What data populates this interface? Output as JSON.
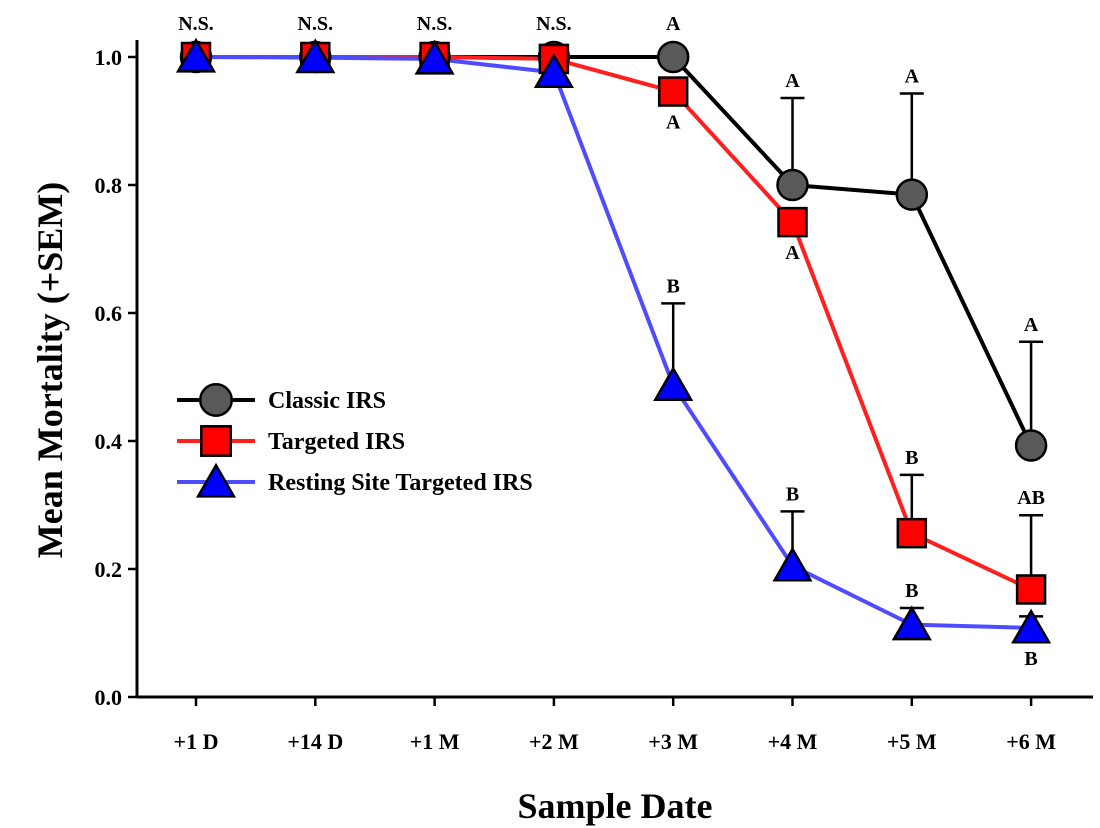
{
  "chart_data": {
    "type": "line",
    "title": "",
    "xlabel": "Sample Date",
    "ylabel": "Mean Mortality (+SEM)",
    "categories": [
      "+1 D",
      "+14 D",
      "+1 M",
      "+2 M",
      "+3 M",
      "+4 M",
      "+5 M",
      "+6 M"
    ],
    "ylim": [
      0.0,
      1.0
    ],
    "yticks": [
      "0.0",
      "0.2",
      "0.4",
      "0.6",
      "0.8",
      "1.0"
    ],
    "grid": false,
    "legend_position": "center-left",
    "series": [
      {
        "name": "Classic IRS",
        "color": "#000000",
        "marker": "circle",
        "marker_color": "#595959",
        "values": [
          1.0,
          1.0,
          1.0,
          1.0,
          1.0,
          0.8,
          0.785,
          0.393
        ],
        "sem": [
          0,
          0,
          0,
          0,
          0,
          0.136,
          0.158,
          0.162
        ]
      },
      {
        "name": "Targeted IRS",
        "color": "#ff1f1f",
        "marker": "square",
        "marker_color": "#ff0000",
        "values": [
          1.0,
          1.0,
          1.0,
          0.997,
          0.946,
          0.742,
          0.256,
          0.168
        ],
        "sem": [
          0,
          0,
          0,
          0,
          0,
          0,
          0.091,
          0.116
        ]
      },
      {
        "name": "Resting Site Targeted IRS",
        "color": "#4d4dff",
        "marker": "triangle",
        "marker_color": "#0000ff",
        "values": [
          1.0,
          0.999,
          0.997,
          0.976,
          0.487,
          0.205,
          0.113,
          0.108
        ],
        "sem": [
          0,
          0,
          0,
          0,
          0.128,
          0.085,
          0.026,
          0.018
        ]
      }
    ],
    "annotations": [
      {
        "category": "+1 D",
        "text": "N.S.",
        "value": 1.0,
        "pos": "above"
      },
      {
        "category": "+14 D",
        "text": "N.S.",
        "value": 1.0,
        "pos": "above"
      },
      {
        "category": "+1 M",
        "text": "N.S.",
        "value": 1.0,
        "pos": "above"
      },
      {
        "category": "+2 M",
        "text": "N.S.",
        "value": 1.0,
        "pos": "above"
      },
      {
        "category": "+3 M",
        "text": "A",
        "value": 1.0,
        "pos": "above"
      },
      {
        "category": "+3 M",
        "text": "A",
        "value": 0.946,
        "pos": "below"
      },
      {
        "category": "+3 M",
        "text": "B",
        "value": 0.615,
        "pos": "above"
      },
      {
        "category": "+4 M",
        "text": "A",
        "value": 0.936,
        "pos": "above"
      },
      {
        "category": "+4 M",
        "text": "A",
        "value": 0.742,
        "pos": "below"
      },
      {
        "category": "+4 M",
        "text": "B",
        "value": 0.29,
        "pos": "above"
      },
      {
        "category": "+5 M",
        "text": "A",
        "value": 0.943,
        "pos": "above"
      },
      {
        "category": "+5 M",
        "text": "B",
        "value": 0.347,
        "pos": "above"
      },
      {
        "category": "+5 M",
        "text": "B",
        "value": 0.139,
        "pos": "above"
      },
      {
        "category": "+6 M",
        "text": "A",
        "value": 0.555,
        "pos": "above"
      },
      {
        "category": "+6 M",
        "text": "AB",
        "value": 0.284,
        "pos": "above"
      },
      {
        "category": "+6 M",
        "text": "B",
        "value": 0.108,
        "pos": "below"
      }
    ]
  }
}
